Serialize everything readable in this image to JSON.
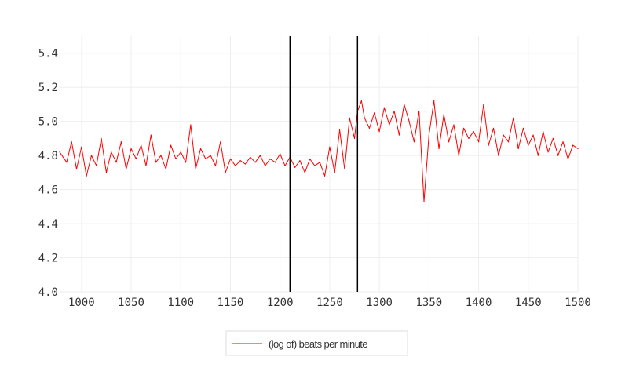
{
  "chart_data": {
    "type": "line",
    "title": "",
    "xlabel": "",
    "ylabel": "",
    "xlim": [
      978,
      1500
    ],
    "ylim": [
      4.0,
      5.5
    ],
    "x_ticks": [
      1000,
      1050,
      1100,
      1150,
      1200,
      1250,
      1300,
      1350,
      1400,
      1450,
      1500
    ],
    "y_ticks": [
      4.0,
      4.2,
      4.4,
      4.6,
      4.8,
      5.0,
      5.2,
      5.4
    ],
    "x_tick_labels": [
      "1000",
      "1050",
      "1100",
      "1150",
      "1200",
      "1250",
      "1300",
      "1350",
      "1400",
      "1450",
      "1500"
    ],
    "y_tick_labels": [
      "4.0",
      "4.2",
      "4.4",
      "4.6",
      "4.8",
      "5.0",
      "5.2",
      "5.4"
    ],
    "grid": true,
    "legend_position": "bottom-center",
    "vertical_lines": [
      1210,
      1278
    ],
    "series": [
      {
        "name": "(log of) beats per minute",
        "color": "#ff0000",
        "x": [
          978,
          985,
          990,
          995,
          1000,
          1005,
          1010,
          1015,
          1020,
          1025,
          1030,
          1035,
          1040,
          1045,
          1050,
          1055,
          1060,
          1065,
          1070,
          1075,
          1080,
          1085,
          1090,
          1095,
          1100,
          1105,
          1110,
          1115,
          1120,
          1125,
          1130,
          1135,
          1140,
          1145,
          1150,
          1155,
          1160,
          1165,
          1170,
          1175,
          1180,
          1185,
          1190,
          1195,
          1200,
          1205,
          1210,
          1215,
          1220,
          1225,
          1230,
          1235,
          1240,
          1245,
          1250,
          1255,
          1260,
          1265,
          1270,
          1275,
          1278,
          1282,
          1285,
          1290,
          1295,
          1300,
          1305,
          1310,
          1315,
          1320,
          1325,
          1330,
          1335,
          1340,
          1345,
          1350,
          1355,
          1360,
          1365,
          1370,
          1375,
          1380,
          1385,
          1390,
          1395,
          1400,
          1405,
          1410,
          1415,
          1420,
          1425,
          1430,
          1435,
          1440,
          1445,
          1450,
          1455,
          1460,
          1465,
          1470,
          1475,
          1480,
          1485,
          1490,
          1495,
          1500
        ],
        "values": [
          4.82,
          4.76,
          4.88,
          4.72,
          4.85,
          4.68,
          4.8,
          4.74,
          4.9,
          4.7,
          4.82,
          4.76,
          4.88,
          4.72,
          4.84,
          4.78,
          4.86,
          4.74,
          4.92,
          4.76,
          4.8,
          4.72,
          4.86,
          4.78,
          4.82,
          4.76,
          4.98,
          4.72,
          4.84,
          4.78,
          4.8,
          4.74,
          4.88,
          4.7,
          4.78,
          4.74,
          4.77,
          4.75,
          4.79,
          4.76,
          4.8,
          4.74,
          4.78,
          4.76,
          4.81,
          4.74,
          4.79,
          4.73,
          4.77,
          4.7,
          4.78,
          4.74,
          4.76,
          4.68,
          4.85,
          4.7,
          4.95,
          4.72,
          5.02,
          4.9,
          5.06,
          5.12,
          5.02,
          4.96,
          5.05,
          4.94,
          5.08,
          4.98,
          5.06,
          4.92,
          5.1,
          5.0,
          4.88,
          5.06,
          4.53,
          4.92,
          5.12,
          4.84,
          5.04,
          4.88,
          4.98,
          4.8,
          4.96,
          4.9,
          4.94,
          4.88,
          5.1,
          4.86,
          4.96,
          4.8,
          4.92,
          4.88,
          5.02,
          4.84,
          4.96,
          4.86,
          4.92,
          4.8,
          4.94,
          4.82,
          4.9,
          4.8,
          4.88,
          4.78,
          4.86,
          4.84
        ]
      }
    ]
  }
}
